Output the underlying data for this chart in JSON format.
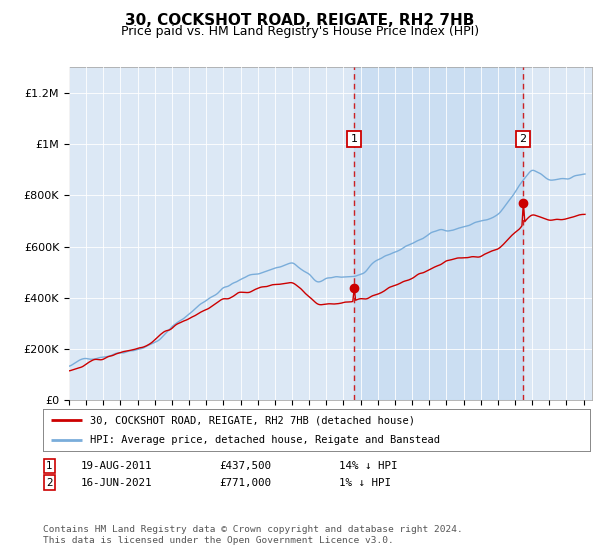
{
  "title": "30, COCKSHOT ROAD, REIGATE, RH2 7HB",
  "subtitle": "Price paid vs. HM Land Registry's House Price Index (HPI)",
  "legend_line1": "30, COCKSHOT ROAD, REIGATE, RH2 7HB (detached house)",
  "legend_line2": "HPI: Average price, detached house, Reigate and Banstead",
  "footnote": "Contains HM Land Registry data © Crown copyright and database right 2024.\nThis data is licensed under the Open Government Licence v3.0.",
  "transaction1_date": "19-AUG-2011",
  "transaction1_price": "£437,500",
  "transaction1_hpi": "14% ↓ HPI",
  "transaction2_date": "16-JUN-2021",
  "transaction2_price": "£771,000",
  "transaction2_hpi": "1% ↓ HPI",
  "vline1_x": 2011.62,
  "vline2_x": 2021.46,
  "point1_y": 437500,
  "point2_y": 771000,
  "ylim": [
    0,
    1300000
  ],
  "xlim_left": 1995.0,
  "xlim_right": 2025.5,
  "plot_bg": "#dce8f5",
  "shade_color": "#c0d8f0",
  "red_color": "#cc0000",
  "blue_color": "#7aadda",
  "title_fontsize": 11,
  "subtitle_fontsize": 9
}
